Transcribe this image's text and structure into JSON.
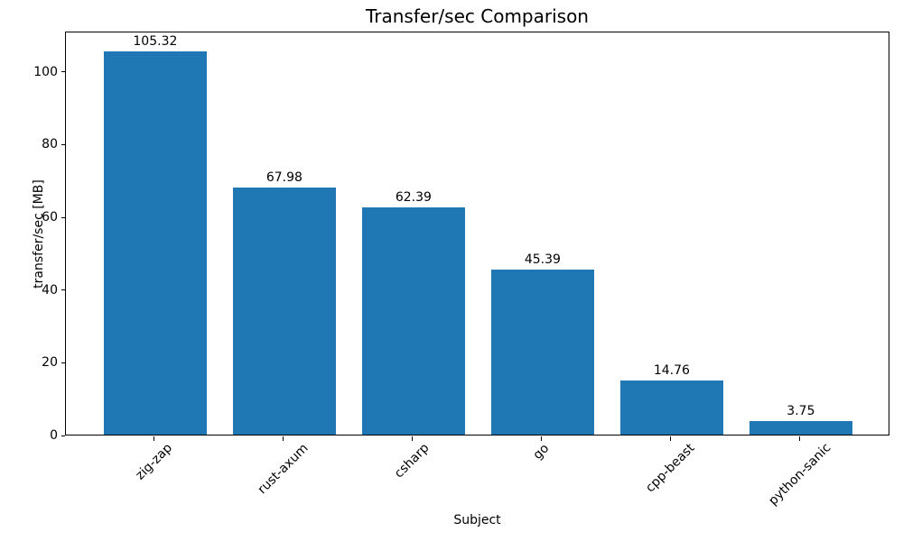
{
  "chart_data": {
    "type": "bar",
    "title": "Transfer/sec Comparison",
    "xlabel": "Subject",
    "ylabel": "transfer/sec [MB]",
    "categories": [
      "zig-zap",
      "rust-axum",
      "csharp",
      "go",
      "cpp-beast",
      "python-sanic"
    ],
    "values": [
      105.32,
      67.98,
      62.39,
      45.39,
      14.76,
      3.75
    ],
    "value_labels": [
      "105.32",
      "67.98",
      "62.39",
      "45.39",
      "14.76",
      "3.75"
    ],
    "yticks": [
      0,
      20,
      40,
      60,
      80,
      100
    ],
    "ylim": [
      0,
      111.1
    ],
    "bar_color": "#1f77b4",
    "text_color": "#000000",
    "grid": false,
    "legend": "none"
  }
}
